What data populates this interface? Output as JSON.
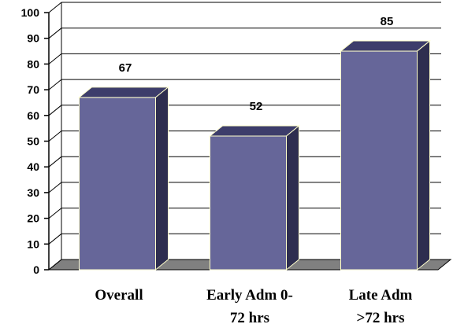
{
  "chart_data": {
    "type": "bar",
    "categories": [
      [
        "Overall"
      ],
      [
        "Early Adm 0-",
        "72 hrs"
      ],
      [
        "Late Adm",
        ">72 hrs"
      ]
    ],
    "values": [
      67,
      52,
      85
    ],
    "ylim": [
      0,
      100
    ],
    "yticks": [
      0,
      10,
      20,
      30,
      40,
      50,
      60,
      70,
      80,
      90,
      100
    ],
    "grid": true,
    "legend": "none",
    "title": "",
    "xlabel": "",
    "ylabel": ""
  },
  "colors": {
    "bar_front": "#666699",
    "bar_top": "#3d3d6b",
    "bar_side": "#2e2e4f",
    "bar_edge": "#ffffcc",
    "grid": "#000000",
    "floor": "#808080"
  }
}
